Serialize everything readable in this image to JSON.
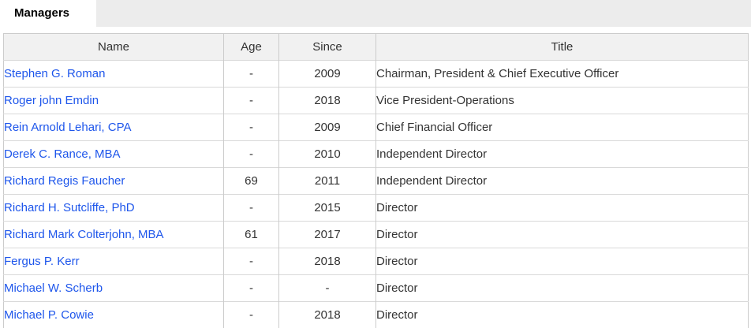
{
  "header": {
    "title": "Managers"
  },
  "colors": {
    "link_blue": "#1e56eb",
    "tab_bar_gray": "#ececec",
    "table_header_bg": "#f1f1f1",
    "table_border": "#cccccc",
    "text": "#333333"
  },
  "table": {
    "columns": [
      {
        "label": "Name"
      },
      {
        "label": "Age"
      },
      {
        "label": "Since"
      },
      {
        "label": "Title"
      }
    ],
    "rows": [
      {
        "name": "Stephen G. Roman",
        "age": "-",
        "since": "2009",
        "title": "Chairman, President & Chief Executive Officer"
      },
      {
        "name": "Roger john Emdin",
        "age": "-",
        "since": "2018",
        "title": "Vice President-Operations"
      },
      {
        "name": "Rein Arnold Lehari, CPA",
        "age": "-",
        "since": "2009",
        "title": "Chief Financial Officer"
      },
      {
        "name": "Derek C. Rance, MBA",
        "age": "-",
        "since": "2010",
        "title": "Independent Director"
      },
      {
        "name": "Richard Regis Faucher",
        "age": "69",
        "since": "2011",
        "title": "Independent Director"
      },
      {
        "name": "Richard H. Sutcliffe, PhD",
        "age": "-",
        "since": "2015",
        "title": "Director"
      },
      {
        "name": "Richard Mark Colterjohn, MBA",
        "age": "61",
        "since": "2017",
        "title": "Director"
      },
      {
        "name": "Fergus P. Kerr",
        "age": "-",
        "since": "2018",
        "title": "Director"
      },
      {
        "name": "Michael W. Scherb",
        "age": "-",
        "since": "-",
        "title": "Director"
      },
      {
        "name": "Michael P. Cowie",
        "age": "-",
        "since": "2018",
        "title": "Director"
      }
    ]
  }
}
